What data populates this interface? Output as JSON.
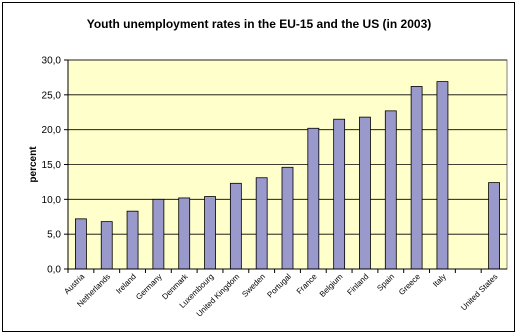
{
  "chart_data": {
    "type": "bar",
    "title": "Youth unemployment rates in the EU-15 and the US (in 2003)",
    "xlabel": "",
    "ylabel": "percent",
    "categories": [
      "Austria",
      "Netherlands",
      "Ireland",
      "Germany",
      "Denmark",
      "Luxembourg",
      "United Kingdom",
      "Sweden",
      "Portugal",
      "France",
      "Belgium",
      "Finland",
      "Spain",
      "Greece",
      "Italy",
      "",
      "United States"
    ],
    "values": [
      7.2,
      6.8,
      8.3,
      10.0,
      10.2,
      10.4,
      12.3,
      13.1,
      14.6,
      20.2,
      21.5,
      21.8,
      22.7,
      26.2,
      26.9,
      null,
      12.4
    ],
    "ylim": [
      0,
      30
    ],
    "yticks": [
      "0,0",
      "5,0",
      "10,0",
      "15,0",
      "20,0",
      "25,0",
      "30,0"
    ],
    "grid": true,
    "legend": "none",
    "colors": {
      "bar": "#9999cc",
      "plot_bg": "#ffffcc",
      "border": "#000000"
    }
  }
}
